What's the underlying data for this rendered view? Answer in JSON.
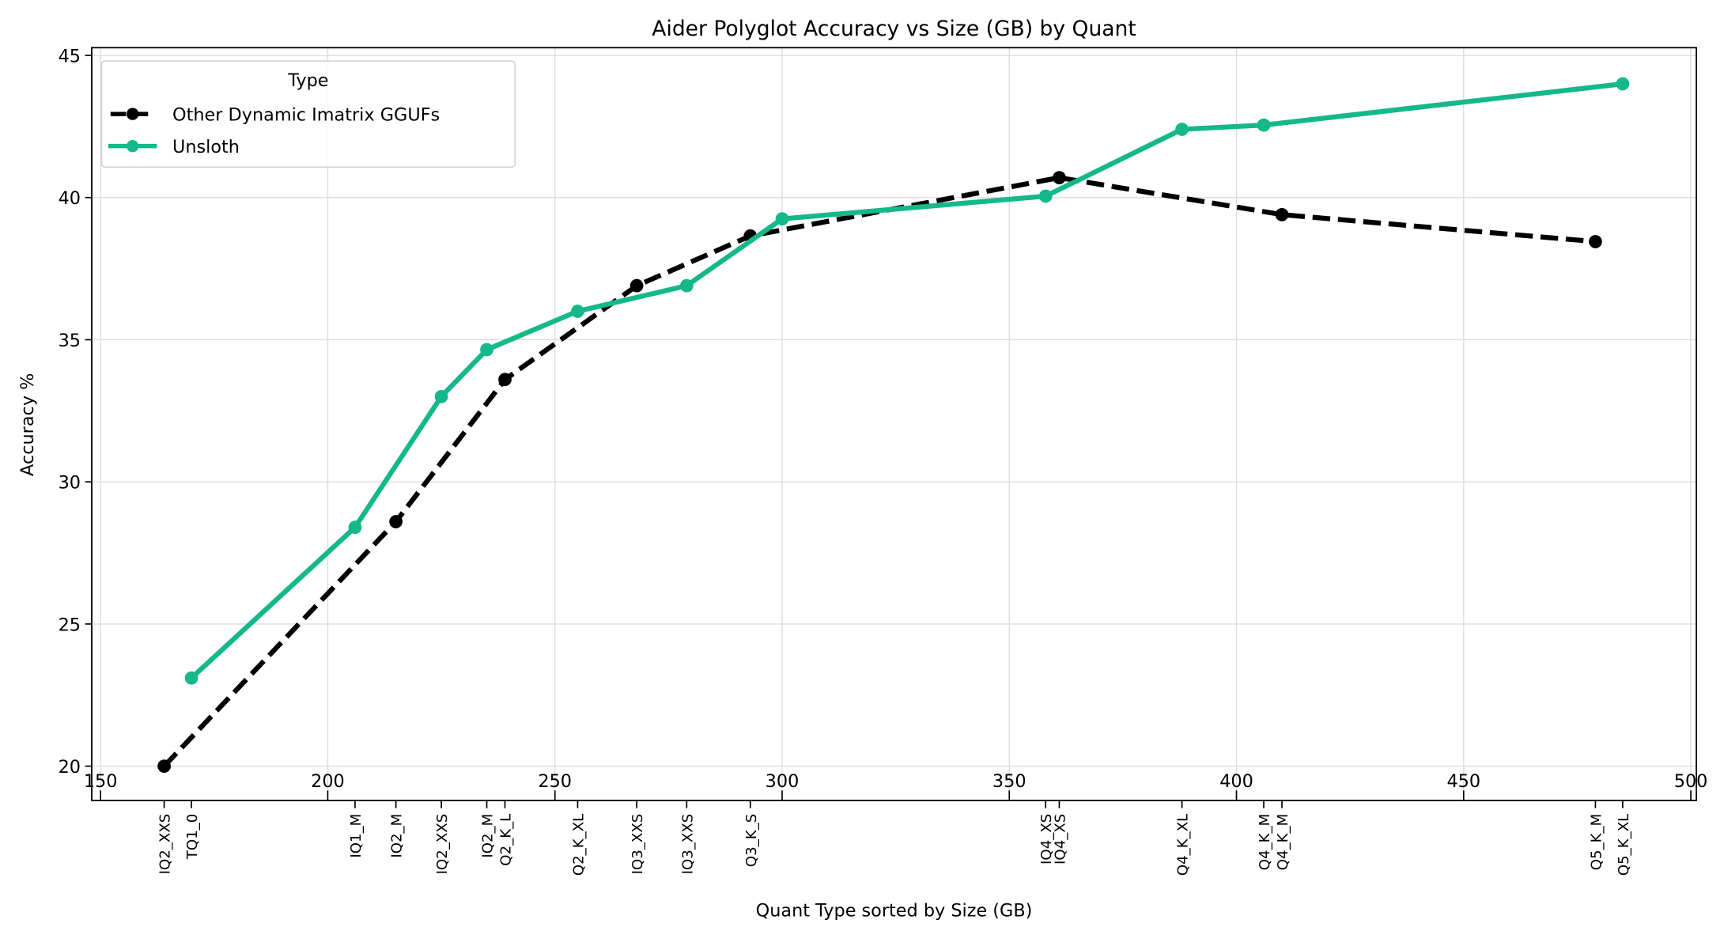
{
  "chart_data": {
    "type": "line",
    "title": "Aider Polyglot Accuracy vs Size (GB) by Quant",
    "xlabel": "Quant Type sorted by Size (GB)",
    "ylabel": "Accuracy %",
    "xlim": [
      148,
      510
    ],
    "ylim": [
      19.3,
      45.3
    ],
    "x_major_ticks": [
      150,
      200,
      250,
      300,
      350,
      400,
      450,
      500
    ],
    "y_ticks": [
      20,
      25,
      30,
      35,
      40,
      45
    ],
    "grid": true,
    "legend": {
      "title": "Type",
      "placement": "top-left"
    },
    "series": [
      {
        "name": "Other Dynamic Imatrix GGUFs",
        "color": "#000000",
        "style": "dashed",
        "points": [
          {
            "label": "IQ2_XXS",
            "x": 164,
            "y": 20.0
          },
          {
            "label": "IQ2_M",
            "x": 215,
            "y": 28.6
          },
          {
            "label": "Q2_K_L",
            "x": 239,
            "y": 33.6
          },
          {
            "label": "IQ3_XXS",
            "x": 268,
            "y": 36.9
          },
          {
            "label": "Q3_K_S",
            "x": 293,
            "y": 38.65
          },
          {
            "label": "IQ4_XS",
            "x": 361,
            "y": 40.7
          },
          {
            "label": "Q4_K_M",
            "x": 410,
            "y": 39.4
          },
          {
            "label": "Q5_K_M",
            "x": 479,
            "y": 38.45
          }
        ]
      },
      {
        "name": "Unsloth",
        "color": "#14b88a",
        "style": "solid",
        "points": [
          {
            "label": "TQ1_0",
            "x": 170,
            "y": 23.1
          },
          {
            "label": "IQ1_M",
            "x": 206,
            "y": 28.4
          },
          {
            "label": "IQ2_XXS",
            "x": 225,
            "y": 33.0
          },
          {
            "label": "IQ2_M",
            "x": 235,
            "y": 34.65
          },
          {
            "label": "Q2_K_XL",
            "x": 255,
            "y": 36.0
          },
          {
            "label": "IQ3_XXS",
            "x": 279,
            "y": 36.9
          },
          {
            "label": null,
            "x": 300,
            "y": 39.25
          },
          {
            "label": "IQ4_XS",
            "x": 358,
            "y": 40.05
          },
          {
            "label": "Q4_K_XL",
            "x": 388,
            "y": 42.4
          },
          {
            "label": "Q4_K_M",
            "x": 406,
            "y": 42.55
          },
          {
            "label": "Q5_K_XL",
            "x": 485,
            "y": 44.0
          }
        ]
      }
    ]
  }
}
